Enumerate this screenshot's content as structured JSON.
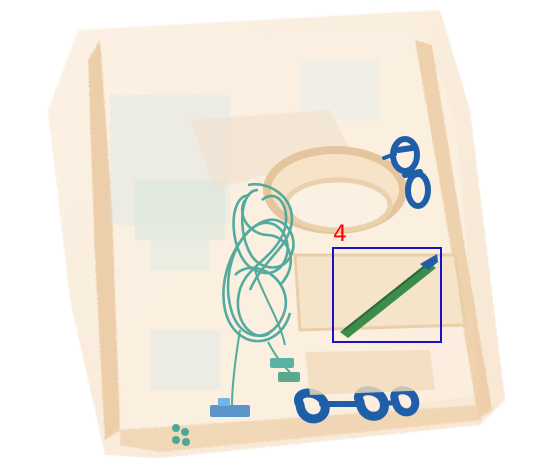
{
  "image": {
    "kind": "x-ray baggage scan",
    "background": "#ffffff"
  },
  "annotation": {
    "label": "4",
    "label_color": "#ff0000",
    "box_color": "#1a12c8"
  },
  "colors": {
    "bag_organic": "#f3d9b8",
    "bag_edge": "#e8c59a",
    "inorganic": "#7fbbe6",
    "metal_blue": "#1f5ea8",
    "cable_green": "#4aa89a",
    "knife_green": "#3c8c4a"
  }
}
